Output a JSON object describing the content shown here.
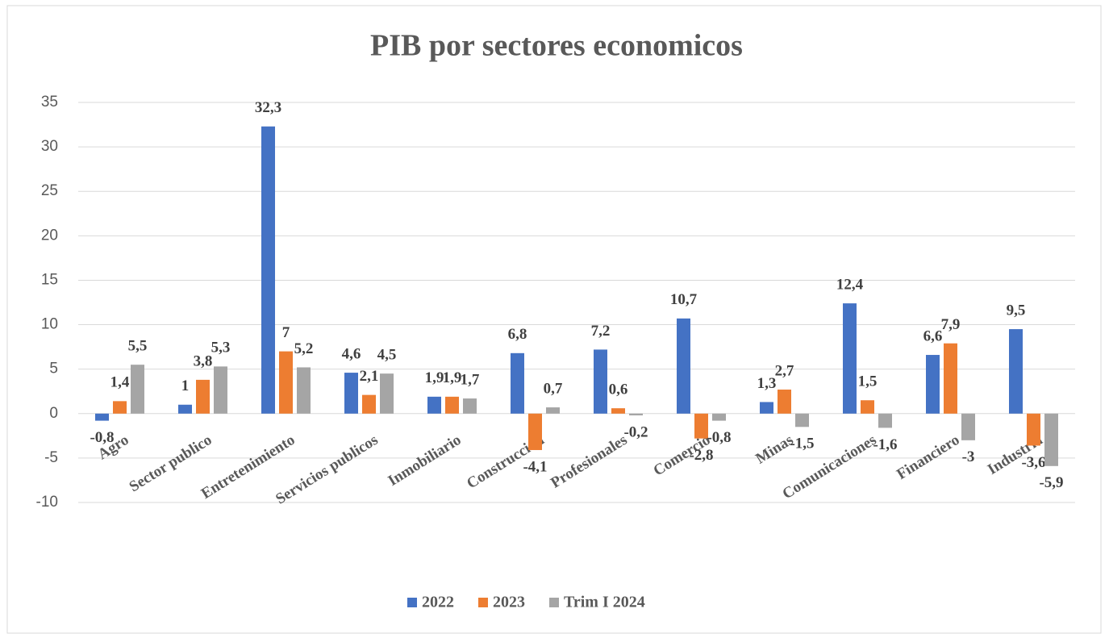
{
  "chart_data": {
    "type": "bar",
    "title": "PIB por sectores economicos",
    "categories": [
      "Agro",
      "Sector publico",
      "Entretenimiento",
      "Servicios publicos",
      "Inmobiliario",
      "Construccion",
      "Profesionales",
      "Comercio",
      "Minas",
      "Comunicaciones",
      "Financiero",
      "Industria"
    ],
    "series": [
      {
        "name": "2022",
        "color": "#4472c4",
        "values": [
          -0.8,
          1,
          32.3,
          4.6,
          1.9,
          6.8,
          7.2,
          10.7,
          1.3,
          12.4,
          6.6,
          9.5
        ],
        "value_labels": [
          "-0,8",
          "1",
          "32,3",
          "4,6",
          "1,9",
          "6,8",
          "7,2",
          "10,7",
          "1,3",
          "12,4",
          "6,6",
          "9,5"
        ]
      },
      {
        "name": "2023",
        "color": "#ed7d31",
        "values": [
          1.4,
          3.8,
          7,
          2.1,
          1.9,
          -4.1,
          0.6,
          -2.8,
          2.7,
          1.5,
          7.9,
          -3.6
        ],
        "value_labels": [
          "1,4",
          "3,8",
          "7",
          "2,1",
          "1,9",
          "-4,1",
          "0,6",
          "-2,8",
          "2,7",
          "1,5",
          "7,9",
          "-3,6"
        ]
      },
      {
        "name": "Trim I 2024",
        "color": "#a5a5a5",
        "values": [
          5.5,
          5.3,
          5.2,
          4.5,
          1.7,
          0.7,
          -0.2,
          -0.8,
          -1.5,
          -1.6,
          -3,
          -5.9
        ],
        "value_labels": [
          "5,5",
          "5,3",
          "5,2",
          "4,5",
          "1,7",
          "0,7",
          "-0,2",
          "-0,8",
          "-1,5",
          "-1,6",
          "-3",
          "-5,9"
        ]
      }
    ],
    "ylim": [
      -10,
      35
    ],
    "yticks": [
      -10,
      -5,
      0,
      5,
      10,
      15,
      20,
      25,
      30,
      35
    ],
    "grid": true,
    "legend": "bottom"
  }
}
